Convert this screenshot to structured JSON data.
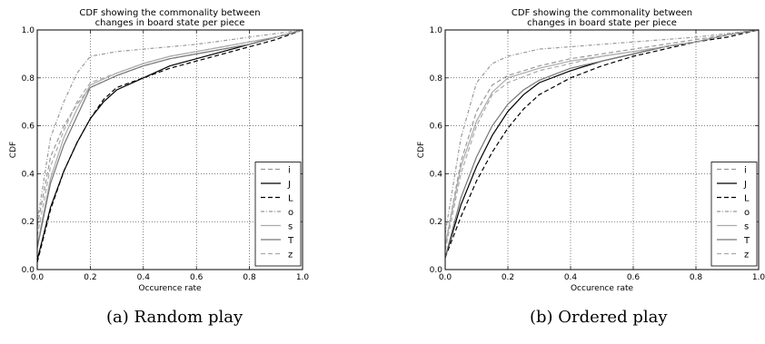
{
  "chart_data": [
    {
      "type": "line",
      "title": "CDF showing the commonality between changes in board state per piece",
      "title_lines": [
        "CDF showing the commonality between",
        "changes in board state per piece"
      ],
      "xlabel": "Occurence rate",
      "ylabel": "CDF",
      "xlim": [
        0.0,
        1.0
      ],
      "ylim": [
        0.0,
        1.0
      ],
      "xticks": [
        "0.0",
        "0.2",
        "0.4",
        "0.6",
        "0.8",
        "1.0"
      ],
      "yticks": [
        "0.0",
        "0.2",
        "0.4",
        "0.6",
        "0.8",
        "1.0"
      ],
      "grid": true,
      "legend_position": "lower-right",
      "caption": "(a) Random play",
      "series": [
        {
          "name": "i",
          "color": "#999999",
          "dash": "dashed",
          "x": [
            0,
            0.05,
            0.1,
            0.15,
            0.2,
            0.3,
            0.4,
            0.5,
            0.6,
            0.7,
            0.8,
            0.9,
            1.0
          ],
          "y": [
            0.18,
            0.47,
            0.6,
            0.69,
            0.76,
            0.81,
            0.85,
            0.88,
            0.9,
            0.92,
            0.94,
            0.97,
            1.0
          ]
        },
        {
          "name": "J",
          "color": "#000000",
          "dash": "solid",
          "x": [
            0,
            0.05,
            0.1,
            0.15,
            0.2,
            0.25,
            0.3,
            0.4,
            0.5,
            0.6,
            0.7,
            0.8,
            0.9,
            1.0
          ],
          "y": [
            0.04,
            0.26,
            0.41,
            0.53,
            0.63,
            0.7,
            0.75,
            0.8,
            0.85,
            0.88,
            0.91,
            0.94,
            0.97,
            1.0
          ]
        },
        {
          "name": "L",
          "color": "#000000",
          "dash": "dashed",
          "x": [
            0,
            0.05,
            0.1,
            0.15,
            0.2,
            0.25,
            0.3,
            0.4,
            0.5,
            0.6,
            0.7,
            0.8,
            0.9,
            1.0
          ],
          "y": [
            0.03,
            0.25,
            0.41,
            0.53,
            0.63,
            0.71,
            0.76,
            0.8,
            0.84,
            0.87,
            0.9,
            0.93,
            0.96,
            1.0
          ]
        },
        {
          "name": "o",
          "color": "#999999",
          "dash": "dashdot",
          "x": [
            0,
            0.05,
            0.1,
            0.15,
            0.2,
            0.3,
            0.4,
            0.5,
            0.6,
            0.7,
            0.8,
            0.9,
            1.0
          ],
          "y": [
            0.2,
            0.55,
            0.7,
            0.82,
            0.89,
            0.91,
            0.92,
            0.93,
            0.94,
            0.955,
            0.97,
            0.985,
            1.0
          ]
        },
        {
          "name": "s",
          "color": "#aaaaaa",
          "dash": "solid",
          "x": [
            0,
            0.05,
            0.1,
            0.15,
            0.2,
            0.3,
            0.4,
            0.5,
            0.6,
            0.7,
            0.8,
            0.9,
            1.0
          ],
          "y": [
            0.1,
            0.38,
            0.55,
            0.67,
            0.77,
            0.82,
            0.86,
            0.89,
            0.91,
            0.93,
            0.95,
            0.97,
            1.0
          ]
        },
        {
          "name": "T",
          "color": "#777777",
          "dash": "solid",
          "x": [
            0,
            0.05,
            0.1,
            0.15,
            0.2,
            0.3,
            0.4,
            0.5,
            0.6,
            0.7,
            0.8,
            0.9,
            1.0
          ],
          "y": [
            0.09,
            0.36,
            0.52,
            0.64,
            0.76,
            0.81,
            0.85,
            0.88,
            0.9,
            0.92,
            0.94,
            0.97,
            1.0
          ]
        },
        {
          "name": "z",
          "color": "#aaaaaa",
          "dash": "dashed",
          "x": [
            0,
            0.05,
            0.1,
            0.15,
            0.2,
            0.3,
            0.4,
            0.5,
            0.6,
            0.7,
            0.8,
            0.9,
            1.0
          ],
          "y": [
            0.14,
            0.43,
            0.58,
            0.7,
            0.78,
            0.82,
            0.86,
            0.89,
            0.91,
            0.93,
            0.95,
            0.97,
            1.0
          ]
        }
      ]
    },
    {
      "type": "line",
      "title": "CDF showing the commonality between changes in board state per piece",
      "title_lines": [
        "CDF showing the commonality between",
        "changes in board state per piece"
      ],
      "xlabel": "Occurence rate",
      "ylabel": "CDF",
      "xlim": [
        0.0,
        1.0
      ],
      "ylim": [
        0.0,
        1.0
      ],
      "xticks": [
        "0.0",
        "0.2",
        "0.4",
        "0.6",
        "0.8",
        "1.0"
      ],
      "yticks": [
        "0.0",
        "0.2",
        "0.4",
        "0.6",
        "0.8",
        "1.0"
      ],
      "grid": true,
      "legend_position": "lower-right",
      "caption": "(b) Ordered play",
      "series": [
        {
          "name": "i",
          "color": "#999999",
          "dash": "dashed",
          "x": [
            0,
            0.05,
            0.1,
            0.15,
            0.2,
            0.3,
            0.4,
            0.5,
            0.6,
            0.7,
            0.8,
            0.9,
            1.0
          ],
          "y": [
            0.1,
            0.45,
            0.66,
            0.77,
            0.81,
            0.85,
            0.88,
            0.9,
            0.92,
            0.94,
            0.96,
            0.98,
            1.0
          ]
        },
        {
          "name": "J",
          "color": "#000000",
          "dash": "solid",
          "x": [
            0,
            0.05,
            0.1,
            0.15,
            0.2,
            0.25,
            0.3,
            0.4,
            0.5,
            0.6,
            0.7,
            0.8,
            0.9,
            1.0
          ],
          "y": [
            0.05,
            0.27,
            0.43,
            0.56,
            0.66,
            0.73,
            0.78,
            0.83,
            0.87,
            0.9,
            0.93,
            0.95,
            0.98,
            1.0
          ]
        },
        {
          "name": "L",
          "color": "#000000",
          "dash": "dashed",
          "x": [
            0,
            0.05,
            0.1,
            0.15,
            0.2,
            0.25,
            0.3,
            0.4,
            0.5,
            0.6,
            0.7,
            0.8,
            0.9,
            1.0
          ],
          "y": [
            0.05,
            0.22,
            0.37,
            0.49,
            0.59,
            0.67,
            0.73,
            0.8,
            0.85,
            0.89,
            0.92,
            0.95,
            0.97,
            1.0
          ]
        },
        {
          "name": "o",
          "color": "#999999",
          "dash": "dashdot",
          "x": [
            0,
            0.05,
            0.1,
            0.15,
            0.2,
            0.3,
            0.4,
            0.5,
            0.6,
            0.7,
            0.8,
            0.9,
            1.0
          ],
          "y": [
            0.15,
            0.55,
            0.78,
            0.86,
            0.89,
            0.92,
            0.93,
            0.94,
            0.95,
            0.96,
            0.97,
            0.985,
            1.0
          ]
        },
        {
          "name": "s",
          "color": "#aaaaaa",
          "dash": "solid",
          "x": [
            0,
            0.05,
            0.1,
            0.15,
            0.2,
            0.3,
            0.4,
            0.5,
            0.6,
            0.7,
            0.8,
            0.9,
            1.0
          ],
          "y": [
            0.1,
            0.43,
            0.62,
            0.74,
            0.8,
            0.84,
            0.87,
            0.89,
            0.91,
            0.93,
            0.95,
            0.98,
            1.0
          ]
        },
        {
          "name": "T",
          "color": "#777777",
          "dash": "solid",
          "x": [
            0,
            0.05,
            0.1,
            0.15,
            0.2,
            0.25,
            0.3,
            0.4,
            0.5,
            0.6,
            0.7,
            0.8,
            0.9,
            1.0
          ],
          "y": [
            0.05,
            0.3,
            0.47,
            0.6,
            0.69,
            0.75,
            0.79,
            0.84,
            0.87,
            0.9,
            0.93,
            0.95,
            0.98,
            1.0
          ]
        },
        {
          "name": "z",
          "color": "#aaaaaa",
          "dash": "dashed",
          "x": [
            0,
            0.05,
            0.1,
            0.15,
            0.2,
            0.3,
            0.4,
            0.5,
            0.6,
            0.7,
            0.8,
            0.9,
            1.0
          ],
          "y": [
            0.08,
            0.4,
            0.6,
            0.73,
            0.78,
            0.83,
            0.86,
            0.89,
            0.91,
            0.93,
            0.95,
            0.98,
            1.0
          ]
        }
      ]
    }
  ]
}
